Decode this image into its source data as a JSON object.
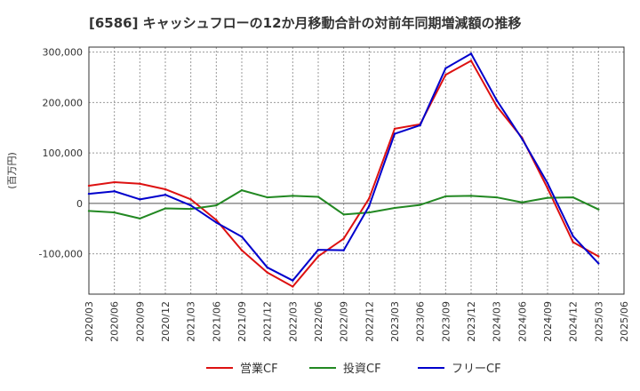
{
  "chart_data": {
    "type": "line",
    "title": "[6586]  キャッシュフローの12か月移動合計の対前年同期増減額の推移",
    "ylabel": "(百万円)",
    "xlabel": "",
    "ylim": [
      -180000,
      310000
    ],
    "y_ticks": [
      300000,
      200000,
      100000,
      0,
      -100000
    ],
    "y_tick_labels": [
      "300,000",
      "200,000",
      "100,000",
      "0",
      "-100,000"
    ],
    "x": [
      "2020/03",
      "2020/06",
      "2020/09",
      "2020/12",
      "2021/03",
      "2021/06",
      "2021/09",
      "2021/12",
      "2022/03",
      "2022/06",
      "2022/09",
      "2022/12",
      "2023/03",
      "2023/06",
      "2023/09",
      "2023/12",
      "2024/03",
      "2024/06",
      "2024/09",
      "2024/12",
      "2025/03",
      "2025/06"
    ],
    "legend_position": "bottom",
    "series": [
      {
        "name": "営業CF",
        "color": "#dd1111",
        "values": [
          35000,
          42000,
          39000,
          28000,
          8000,
          -33000,
          -93000,
          -137000,
          -165000,
          -105000,
          -70000,
          10000,
          148000,
          157000,
          255000,
          283000,
          193000,
          130000,
          30000,
          -77000,
          -105000,
          null
        ]
      },
      {
        "name": "投資CF",
        "color": "#228822",
        "values": [
          -15000,
          -18000,
          -30000,
          -10000,
          -11000,
          -4000,
          26000,
          12000,
          15000,
          13000,
          -22000,
          -18000,
          -9000,
          -3000,
          14000,
          15000,
          12000,
          2000,
          11000,
          12000,
          -12000,
          null
        ]
      },
      {
        "name": "フリーCF",
        "color": "#0000cc",
        "values": [
          19000,
          24000,
          8000,
          17000,
          -4000,
          -38000,
          -66000,
          -127000,
          -153000,
          -92000,
          -93000,
          -5000,
          138000,
          155000,
          268000,
          297000,
          205000,
          128000,
          40000,
          -65000,
          -119000,
          null
        ]
      }
    ]
  }
}
